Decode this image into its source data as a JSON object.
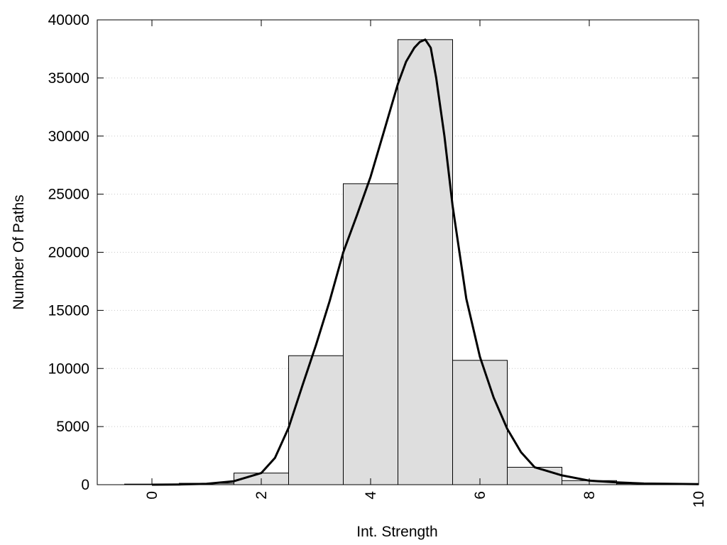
{
  "chart_data": {
    "type": "bar",
    "title": "",
    "xlabel": "Int. Strength",
    "ylabel": "Number Of Paths",
    "xlim": [
      -1,
      10
    ],
    "ylim": [
      0,
      40000
    ],
    "xticks": [
      0,
      2,
      4,
      6,
      8,
      10
    ],
    "yticks": [
      0,
      5000,
      10000,
      15000,
      20000,
      25000,
      30000,
      35000,
      40000
    ],
    "grid": "horizontal dotted",
    "legend": "none",
    "bar_color": "#dedede",
    "line_color": "#000000",
    "bars": {
      "x": [
        0,
        1,
        2,
        3,
        4,
        5,
        6,
        7,
        8,
        9
      ],
      "values": [
        50,
        120,
        1000,
        11100,
        25900,
        38300,
        10700,
        1500,
        350,
        80
      ]
    },
    "curve": {
      "x": [
        0,
        0.5,
        1,
        1.5,
        2,
        2.25,
        2.5,
        2.75,
        3,
        3.25,
        3.5,
        3.75,
        4,
        4.25,
        4.5,
        4.65,
        4.8,
        4.9,
        5,
        5.1,
        5.2,
        5.35,
        5.5,
        5.75,
        6,
        6.25,
        6.5,
        6.75,
        7,
        7.5,
        8,
        8.5,
        9,
        10
      ],
      "y": [
        0,
        20,
        80,
        300,
        1000,
        2300,
        4900,
        8500,
        12000,
        15800,
        20000,
        23200,
        26500,
        30500,
        34500,
        36400,
        37600,
        38100,
        38300,
        37600,
        35000,
        30000,
        24000,
        16000,
        11000,
        7500,
        4800,
        2800,
        1500,
        800,
        350,
        200,
        100,
        50
      ]
    }
  }
}
